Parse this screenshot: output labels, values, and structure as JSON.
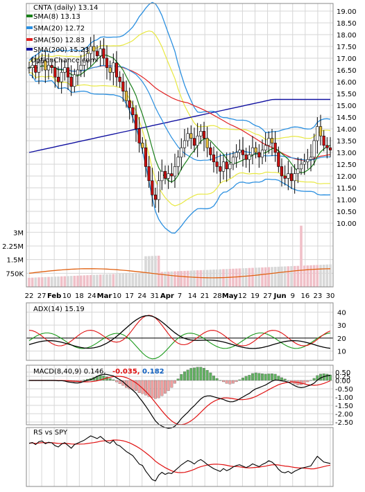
{
  "title": "CNTA (daily) 13.14",
  "watermark": "OptionChance.com",
  "colors": {
    "sma8": "#1a7f1a",
    "sma20": "#2a8fe0",
    "sma50": "#e02020",
    "sma200": "#1010a0",
    "bollinger_upper": "#2a8fe0",
    "bollinger_band": "#e8e840",
    "candle_up": "#ffffff",
    "candle_down": "#cc1010",
    "candle_other": "#e8c040",
    "volume_up": "#f0c0c8",
    "volume_down": "#d8d8d8",
    "volume_ma": "#e06010",
    "adx": "#000000",
    "di_plus": "#1a9a1a",
    "di_minus": "#e01010",
    "macd": "#000000",
    "signal": "#e01010",
    "hist_pos": "#60b060",
    "hist_neg": "#f0a0a0",
    "rs": "#000000",
    "rs_ma": "#e01010",
    "grid": "#d6d6d6"
  },
  "legend": [
    {
      "label": "SMA(8) 13.13",
      "color": "#1a7f1a"
    },
    {
      "label": "SMA(20) 12.72",
      "color": "#2a8fe0"
    },
    {
      "label": "SMA(50) 12.83",
      "color": "#e02020"
    },
    {
      "label": "SMA(200) 15.23",
      "color": "#1010a0"
    }
  ],
  "price_axis": {
    "ticks": [
      "19.00",
      "18.50",
      "18.00",
      "17.50",
      "17.00",
      "16.50",
      "16.00",
      "15.50",
      "15.00",
      "14.50",
      "14.00",
      "13.50",
      "13.00",
      "12.50",
      "12.00",
      "11.50",
      "11.00",
      "10.50",
      "10.00"
    ]
  },
  "volume_axis": {
    "ticks": [
      "3M",
      "2.25M",
      "1.5M",
      "750K"
    ]
  },
  "x_axis": {
    "ticks": [
      "22",
      "27",
      "Feb",
      "10",
      "18",
      "24",
      "Mar",
      "10",
      "17",
      "24",
      "31",
      "Apr",
      "7",
      "14",
      "21",
      "28",
      "May",
      "12",
      "19",
      "27",
      "Jun",
      "9",
      "16",
      "23",
      "30"
    ]
  },
  "adx": {
    "label": "ADX(14) 15.19",
    "ticks": [
      "40",
      "30",
      "20",
      "10"
    ]
  },
  "macd": {
    "label": "MACD(8,40,9) 0.146,",
    "value2": "-0.035,",
    "value3": "0.182",
    "value2_color": "#e01010",
    "value3_color": "#1060c0",
    "ticks": [
      "0.50",
      "0.25",
      "0.00",
      "-0.50",
      "-1.00",
      "-1.50",
      "-2.00",
      "-2.50"
    ]
  },
  "rs": {
    "label": "RS vs SPY"
  },
  "chart_data": {
    "type": "line",
    "title": "CNTA (daily) 13.14",
    "price_series": {
      "close": [
        16.6,
        16.7,
        16.4,
        16.8,
        16.9,
        16.5,
        16.7,
        16.6,
        16.2,
        16.0,
        16.4,
        16.6,
        16.2,
        15.8,
        16.3,
        16.5,
        16.7,
        16.9,
        17.2,
        17.5,
        17.3,
        17.1,
        17.4,
        17.0,
        16.6,
        16.4,
        16.8,
        16.2,
        16.0,
        15.6,
        15.2,
        14.9,
        14.6,
        14.0,
        13.4,
        13.2,
        12.4,
        11.8,
        11.2,
        11.0,
        11.8,
        12.2,
        11.9,
        12.1,
        12.0,
        12.4,
        12.8,
        13.2,
        13.5,
        13.8,
        13.6,
        13.3,
        13.7,
        13.9,
        13.6,
        13.2,
        12.9,
        12.6,
        12.4,
        12.2,
        12.6,
        12.3,
        12.5,
        12.8,
        13.0,
        13.1,
        12.9,
        12.7,
        12.9,
        13.2,
        13.0,
        12.8,
        13.1,
        13.3,
        13.6,
        13.4,
        13.0,
        12.4,
        12.0,
        11.9,
        12.1,
        11.8,
        12.1,
        12.3,
        12.5,
        12.6,
        12.7,
        12.8,
        13.5,
        14.1,
        13.7,
        13.3,
        13.2,
        13.1
      ],
      "sma8_last": 13.13,
      "sma20_last": 12.72,
      "sma50_last": 12.83,
      "sma200_last": 15.23
    },
    "price_range": [
      10.0,
      19.0
    ],
    "volume_range": [
      0,
      3000000
    ],
    "adx_range": [
      10,
      40
    ],
    "macd_range": [
      -2.5,
      0.5
    ],
    "grid": true,
    "legend_position": "top-left"
  }
}
